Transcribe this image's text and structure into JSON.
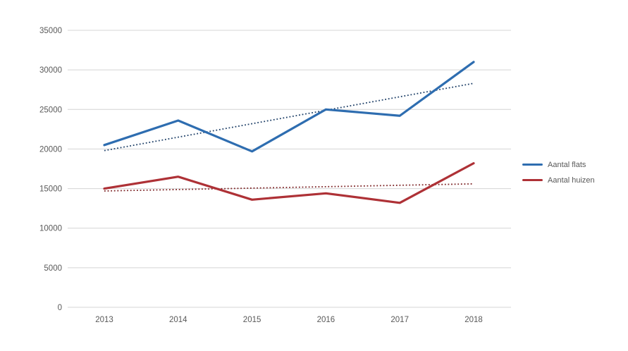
{
  "chart_data": {
    "type": "line",
    "x": [
      "2013",
      "2014",
      "2015",
      "2016",
      "2017",
      "2018"
    ],
    "series": [
      {
        "name": "Aantal flats",
        "color": "#2E6DB0",
        "values": [
          20500,
          23600,
          19700,
          25000,
          24200,
          31000
        ],
        "trendline": {
          "start": 19800,
          "end": 28300,
          "color": "#1F4068",
          "style": "dotted"
        }
      },
      {
        "name": "Aantal huizen",
        "color": "#AE3136",
        "values": [
          15000,
          16500,
          13600,
          14400,
          13200,
          18200
        ],
        "trendline": {
          "start": 14700,
          "end": 15600,
          "color": "#7E2527",
          "style": "dotted"
        }
      }
    ],
    "y_ticks": [
      0,
      5000,
      10000,
      15000,
      20000,
      25000,
      30000,
      35000
    ],
    "y_tick_labels": [
      "0",
      "5000",
      "10000",
      "15000",
      "20000",
      "25000",
      "30000",
      "35000"
    ],
    "ylim": [
      0,
      35000
    ],
    "grid": true,
    "gridline_color": "#D4D4D4",
    "tick_label_color": "#595959",
    "legend_position": "right",
    "title": "",
    "xlabel": "",
    "ylabel": ""
  }
}
